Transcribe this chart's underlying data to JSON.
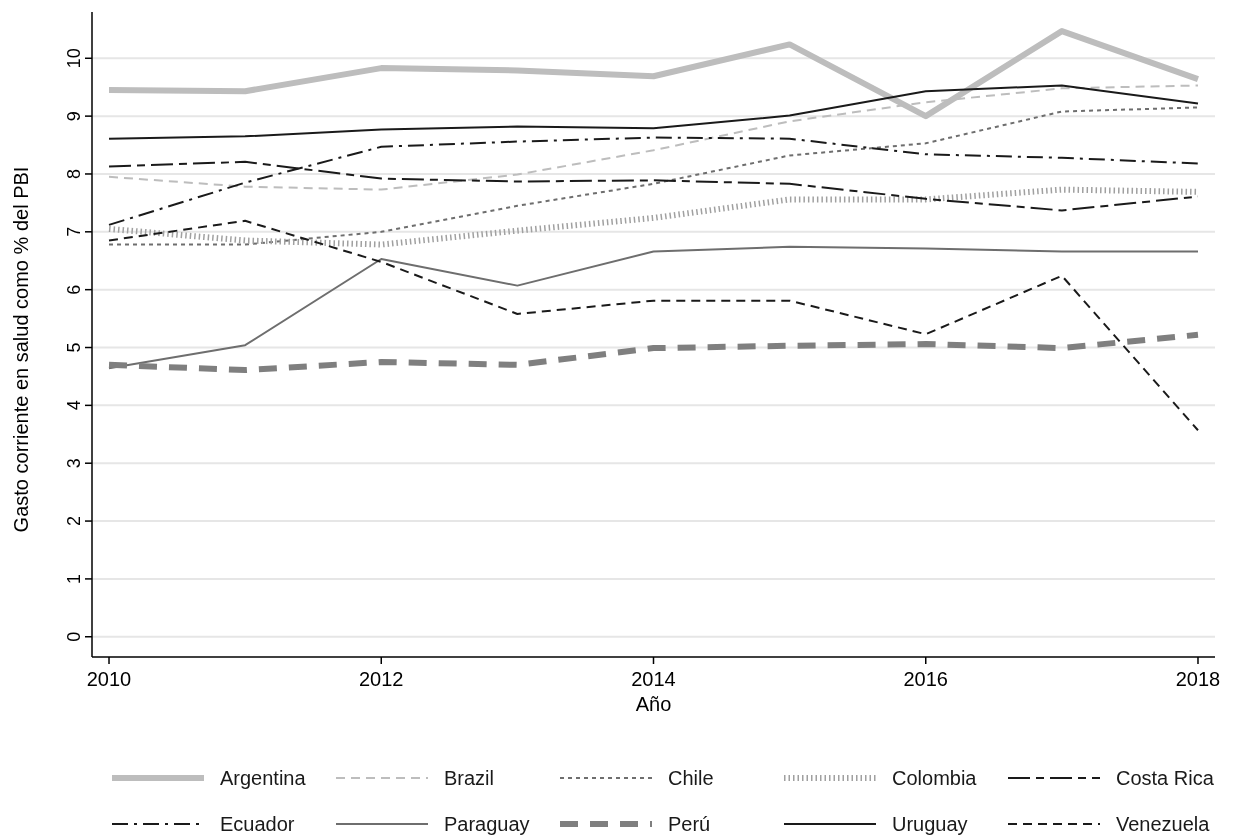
{
  "chart_data": {
    "type": "line",
    "xlabel": "Año",
    "ylabel": "Gasto corriente en salud como % del PBI",
    "x": [
      2010,
      2011,
      2012,
      2013,
      2014,
      2015,
      2016,
      2017,
      2018
    ],
    "xlim": [
      2009.875,
      2018.125
    ],
    "xticks": [
      2010,
      2012,
      2014,
      2016,
      2018
    ],
    "ylim": [
      -0.35,
      10.8
    ],
    "yticks": [
      0,
      1,
      2,
      3,
      4,
      5,
      6,
      7,
      8,
      9,
      10
    ],
    "grid": "y",
    "legend": "bottom",
    "marker": "none",
    "series": [
      {
        "name": "Argentina",
        "color": "#bdbdbd",
        "line_style": "solid",
        "values": [
          9.45,
          9.43,
          9.83,
          9.79,
          9.69,
          10.24,
          9.0,
          10.47,
          9.64
        ]
      },
      {
        "name": "Brazil",
        "color": "#bdbdbd",
        "line_style": "dashed",
        "values": [
          7.95,
          7.78,
          7.73,
          7.99,
          8.41,
          8.91,
          9.24,
          9.48,
          9.53
        ]
      },
      {
        "name": "Chile",
        "color": "#6e6e6e",
        "line_style": "dotted",
        "values": [
          6.78,
          6.78,
          7.0,
          7.45,
          7.83,
          8.32,
          8.53,
          9.08,
          9.15
        ]
      },
      {
        "name": "Colombia",
        "color": "#a0a0a0",
        "line_style": "ticks",
        "values": [
          7.05,
          6.85,
          6.78,
          7.02,
          7.24,
          7.56,
          7.56,
          7.73,
          7.69
        ]
      },
      {
        "name": "Costa Rica",
        "color": "#1a1a1a",
        "line_style": "longdash",
        "values": [
          8.13,
          8.21,
          7.92,
          7.87,
          7.89,
          7.83,
          7.57,
          7.37,
          7.61
        ]
      },
      {
        "name": "Ecuador",
        "color": "#1a1a1a",
        "line_style": "dashdot",
        "values": [
          7.12,
          7.85,
          8.47,
          8.56,
          8.63,
          8.61,
          8.34,
          8.28,
          8.18
        ]
      },
      {
        "name": "Paraguay",
        "color": "#6e6e6e",
        "line_style": "solid",
        "values": [
          4.64,
          5.04,
          6.53,
          6.07,
          6.66,
          6.74,
          6.71,
          6.66,
          6.66
        ]
      },
      {
        "name": "Perú",
        "color": "#7f7f7f",
        "line_style": "dashed",
        "values": [
          4.7,
          4.61,
          4.75,
          4.7,
          4.99,
          5.03,
          5.06,
          4.99,
          5.22
        ]
      },
      {
        "name": "Uruguay",
        "color": "#1a1a1a",
        "line_style": "solid",
        "values": [
          8.61,
          8.65,
          8.77,
          8.82,
          8.79,
          9.01,
          9.43,
          9.53,
          9.22
        ]
      },
      {
        "name": "Venezuela",
        "color": "#1a1a1a",
        "line_style": "dashed",
        "values": [
          6.85,
          7.19,
          6.48,
          5.58,
          5.81,
          5.81,
          5.23,
          6.24,
          3.57
        ]
      }
    ]
  }
}
